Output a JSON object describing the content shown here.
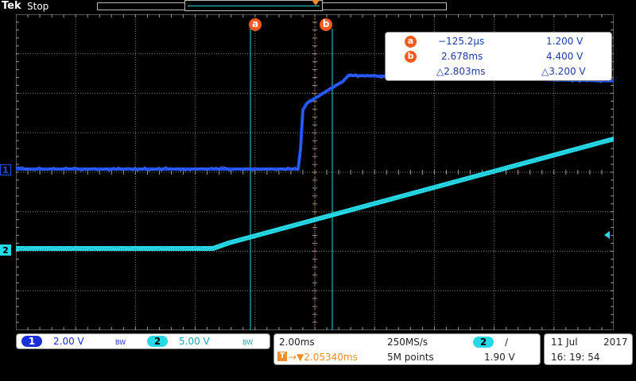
{
  "status": {
    "brand": "Tek",
    "run_state": "Stop"
  },
  "cursor_labels": {
    "a": "a",
    "b": "b"
  },
  "channel_markers": {
    "ch1": "1",
    "ch2": "2"
  },
  "readout": {
    "a": {
      "label": "a",
      "time": "−125.2µs",
      "voltage": "1.200 V"
    },
    "b": {
      "label": "b",
      "time": "2.678ms",
      "voltage": "4.400 V"
    },
    "delta": {
      "time": "△2.803ms",
      "voltage": "△3.200 V"
    }
  },
  "vertical": {
    "ch1": {
      "label": "1",
      "scale": "2.00 V",
      "bw": "BW"
    },
    "ch2": {
      "label": "2",
      "scale": "5.00 V",
      "bw": "BW"
    }
  },
  "horizontal": {
    "timebase": "2.00ms",
    "sample_rate": "250MS/s",
    "record_length": "5M points",
    "trigger_delay": "→▼2.05340ms",
    "trigger_source": "2",
    "trigger_slope": "∕",
    "trigger_level": "1.90 V"
  },
  "datetime": {
    "date": "11 Jul",
    "year": "2017",
    "time": "16: 19: 54"
  },
  "colors": {
    "ch1": "#1f4ff0",
    "ch2": "#27d8e6",
    "cursor": "#f25a1e",
    "trigger": "#f28c28"
  }
}
